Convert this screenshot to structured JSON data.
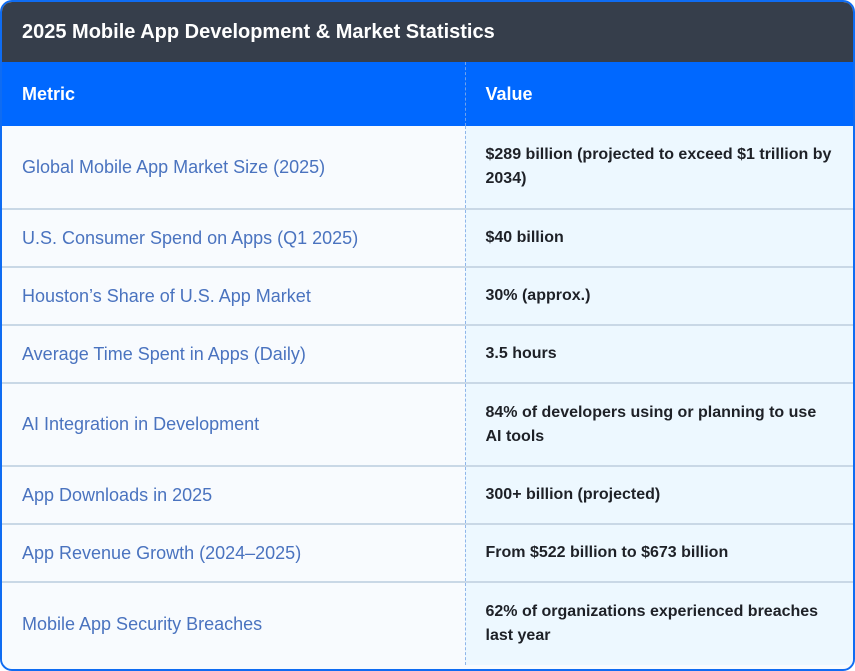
{
  "title": "2025 Mobile App Development & Market Statistics",
  "columns": {
    "metric": "Metric",
    "value": "Value"
  },
  "rows": [
    {
      "metric": "Global Mobile App Market Size (2025)",
      "value": "$289 billion (projected to exceed $1 trillion by 2034)"
    },
    {
      "metric": "U.S. Consumer Spend on Apps (Q1 2025)",
      "value": "$40 billion"
    },
    {
      "metric": "Houston’s Share of U.S. App Market",
      "value": "30% (approx.)"
    },
    {
      "metric": "Average Time Spent in Apps (Daily)",
      "value": "3.5 hours"
    },
    {
      "metric": "AI Integration in Development",
      "value": "84% of developers using or planning to use AI tools"
    },
    {
      "metric": "App Downloads in 2025",
      "value": "300+ billion (projected)"
    },
    {
      "metric": "App Revenue Growth (2024–2025)",
      "value": "From $522 billion to $673 billion"
    },
    {
      "metric": "Mobile App Security Breaches",
      "value": "62% of organizations experienced breaches last year"
    }
  ],
  "colors": {
    "border": "#0f6cf2",
    "title_bg": "#363e4b",
    "header_bg": "#0068ff",
    "metric_text": "#4a73bf",
    "value_bg": "#edf8ff",
    "value_text": "#1e2127"
  }
}
